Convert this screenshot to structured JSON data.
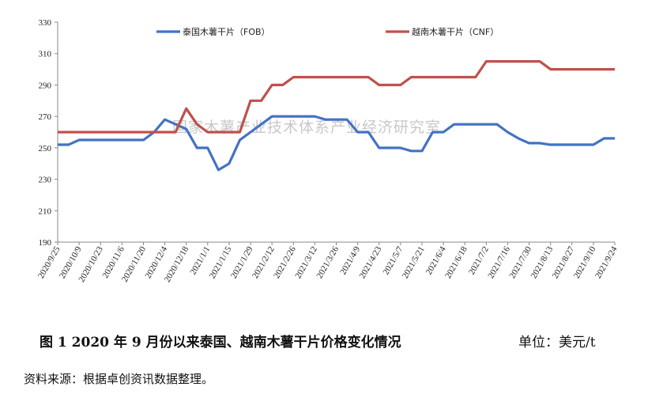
{
  "chart_data": {
    "type": "line",
    "title": "",
    "xlabel": "",
    "ylabel": "",
    "ylim": [
      190,
      330
    ],
    "yticks": [
      190,
      210,
      230,
      250,
      270,
      290,
      310,
      330
    ],
    "grid": false,
    "legend_position": "top",
    "x": [
      "2020/9/25",
      "2020/10/2",
      "2020/10/9",
      "2020/10/16",
      "2020/10/23",
      "2020/10/30",
      "2020/11/6",
      "2020/11/13",
      "2020/11/20",
      "2020/11/27",
      "2020/12/4",
      "2020/12/11",
      "2020/12/18",
      "2020/12/25",
      "2021/1/1",
      "2021/1/8",
      "2021/1/15",
      "2021/1/22",
      "2021/1/29",
      "2021/2/5",
      "2021/2/12",
      "2021/2/19",
      "2021/2/26",
      "2021/3/5",
      "2021/3/12",
      "2021/3/19",
      "2021/3/26",
      "2021/4/2",
      "2021/4/9",
      "2021/4/16",
      "2021/4/23",
      "2021/4/30",
      "2021/5/7",
      "2021/5/14",
      "2021/5/21",
      "2021/5/28",
      "2021/6/4",
      "2021/6/11",
      "2021/6/18",
      "2021/6/25",
      "2021/7/2",
      "2021/7/9",
      "2021/7/16",
      "2021/7/23",
      "2021/7/30",
      "2021/8/6",
      "2021/8/13",
      "2021/8/20",
      "2021/8/27",
      "2021/9/3",
      "2021/9/10",
      "2021/9/17",
      "2021/9/24"
    ],
    "tick_labels": [
      "2020/9/25",
      "2020/10/9",
      "2020/10/23",
      "2020/11/6",
      "2020/11/20",
      "2020/12/4",
      "2020/12/18",
      "2021/1/1",
      "2021/1/15",
      "2021/1/29",
      "2021/2/12",
      "2021/2/26",
      "2021/3/12",
      "2021/3/26",
      "2021/4/9",
      "2021/4/23",
      "2021/5/7",
      "2021/5/21",
      "2021/6/4",
      "2021/6/18",
      "2021/7/2",
      "2021/7/16",
      "2021/7/30",
      "2021/8/13",
      "2021/8/27",
      "2021/9/10",
      "2021/9/24"
    ],
    "series": [
      {
        "name": "泰国木薯干片（FOB）",
        "color": "#4472c4",
        "values": [
          252,
          252,
          255,
          255,
          255,
          255,
          255,
          255,
          255,
          260,
          268,
          265,
          262,
          250,
          250,
          236,
          240,
          255,
          260,
          265,
          270,
          270,
          270,
          270,
          270,
          268,
          268,
          268,
          260,
          260,
          250,
          250,
          250,
          248,
          248,
          260,
          260,
          265,
          265,
          265,
          265,
          265,
          260,
          256,
          253,
          253,
          252,
          252,
          252,
          252,
          252,
          256,
          256
        ]
      },
      {
        "name": "越南木薯干片（CNF）",
        "color": "#c0504d",
        "values": [
          260,
          260,
          260,
          260,
          260,
          260,
          260,
          260,
          260,
          260,
          260,
          260,
          275,
          265,
          260,
          260,
          260,
          260,
          280,
          280,
          290,
          290,
          295,
          295,
          295,
          295,
          295,
          295,
          295,
          295,
          290,
          290,
          290,
          295,
          295,
          295,
          295,
          295,
          295,
          295,
          305,
          305,
          305,
          305,
          305,
          305,
          300,
          300,
          300,
          300,
          300,
          300,
          300
        ]
      }
    ]
  },
  "watermark": "国家木薯产业技术体系产业经济研究室",
  "caption": "图 1 2020 年 9 月份以来泰国、越南木薯干片价格变化情况",
  "unit": "单位：美元/t",
  "source": "资料来源：根据卓创资讯数据整理。"
}
